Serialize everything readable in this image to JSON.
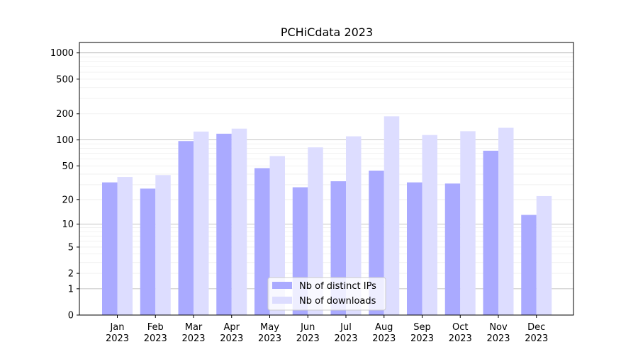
{
  "chart_data": {
    "type": "bar",
    "title": "PCHiCdata 2023",
    "xlabel": "",
    "ylabel": "",
    "y_scale": "log1p",
    "ylim": [
      0,
      1200
    ],
    "grid": true,
    "legend_position": "bottom-center",
    "categories": [
      {
        "month": "Jan",
        "year": "2023"
      },
      {
        "month": "Feb",
        "year": "2023"
      },
      {
        "month": "Mar",
        "year": "2023"
      },
      {
        "month": "Apr",
        "year": "2023"
      },
      {
        "month": "May",
        "year": "2023"
      },
      {
        "month": "Jun",
        "year": "2023"
      },
      {
        "month": "Jul",
        "year": "2023"
      },
      {
        "month": "Aug",
        "year": "2023"
      },
      {
        "month": "Sep",
        "year": "2023"
      },
      {
        "month": "Oct",
        "year": "2023"
      },
      {
        "month": "Nov",
        "year": "2023"
      },
      {
        "month": "Dec",
        "year": "2023"
      }
    ],
    "y_ticks": [
      {
        "value": 0,
        "label": "0"
      },
      {
        "value": 1,
        "label": "1"
      },
      {
        "value": 2,
        "label": "2"
      },
      {
        "value": 5,
        "label": "5"
      },
      {
        "value": 10,
        "label": "10"
      },
      {
        "value": 20,
        "label": "20"
      },
      {
        "value": 50,
        "label": "50"
      },
      {
        "value": 100,
        "label": "100"
      },
      {
        "value": 200,
        "label": "200"
      },
      {
        "value": 500,
        "label": "500"
      },
      {
        "value": 1000,
        "label": "1000"
      }
    ],
    "series": [
      {
        "name": "Nb of distinct IPs",
        "color": "#aaaaff",
        "values": [
          32,
          27,
          97,
          118,
          47,
          28,
          33,
          44,
          32,
          31,
          75,
          13
        ]
      },
      {
        "name": "Nb of downloads",
        "color": "#ddddff",
        "values": [
          37,
          39,
          125,
          135,
          65,
          82,
          110,
          187,
          114,
          126,
          138,
          22
        ]
      }
    ]
  }
}
